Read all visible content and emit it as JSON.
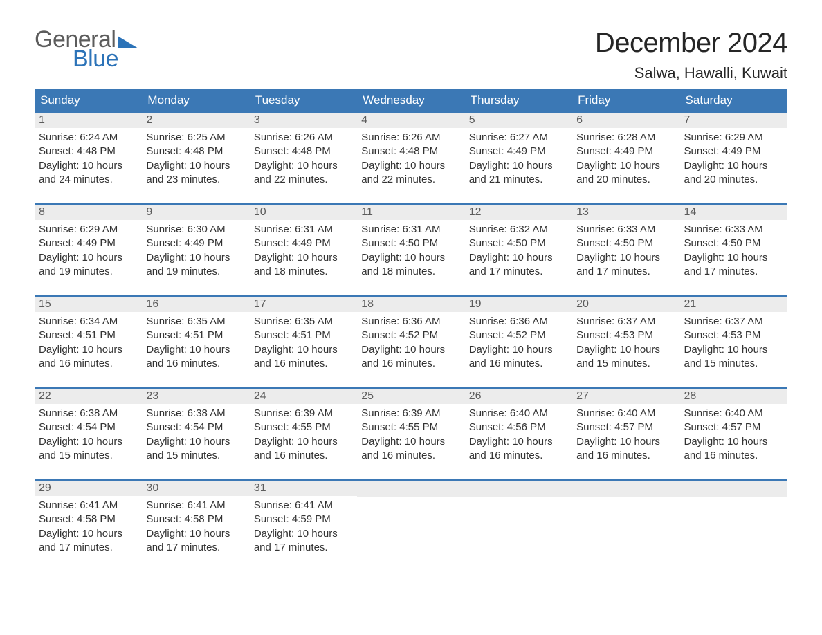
{
  "logo": {
    "word1": "General",
    "word2": "Blue"
  },
  "header": {
    "title": "December 2024",
    "location": "Salwa, Hawalli, Kuwait"
  },
  "style": {
    "header_bg": "#3b78b5",
    "header_fg": "#ffffff",
    "daynum_bg": "#ececec",
    "daynum_fg": "#5c5c5c",
    "row_border": "#3b78b5",
    "page_bg": "#ffffff",
    "text_color": "#333333",
    "logo_general_color": "#5c5c5c",
    "logo_blue_color": "#2c73b8",
    "title_color": "#262626",
    "title_fontsize": 40,
    "location_fontsize": 22,
    "dow_fontsize": 17,
    "body_fontsize": 15
  },
  "daysOfWeek": [
    "Sunday",
    "Monday",
    "Tuesday",
    "Wednesday",
    "Thursday",
    "Friday",
    "Saturday"
  ],
  "weeks": [
    [
      {
        "n": "1",
        "l1": "Sunrise: 6:24 AM",
        "l2": "Sunset: 4:48 PM",
        "l3": "Daylight: 10 hours",
        "l4": "and 24 minutes."
      },
      {
        "n": "2",
        "l1": "Sunrise: 6:25 AM",
        "l2": "Sunset: 4:48 PM",
        "l3": "Daylight: 10 hours",
        "l4": "and 23 minutes."
      },
      {
        "n": "3",
        "l1": "Sunrise: 6:26 AM",
        "l2": "Sunset: 4:48 PM",
        "l3": "Daylight: 10 hours",
        "l4": "and 22 minutes."
      },
      {
        "n": "4",
        "l1": "Sunrise: 6:26 AM",
        "l2": "Sunset: 4:48 PM",
        "l3": "Daylight: 10 hours",
        "l4": "and 22 minutes."
      },
      {
        "n": "5",
        "l1": "Sunrise: 6:27 AM",
        "l2": "Sunset: 4:49 PM",
        "l3": "Daylight: 10 hours",
        "l4": "and 21 minutes."
      },
      {
        "n": "6",
        "l1": "Sunrise: 6:28 AM",
        "l2": "Sunset: 4:49 PM",
        "l3": "Daylight: 10 hours",
        "l4": "and 20 minutes."
      },
      {
        "n": "7",
        "l1": "Sunrise: 6:29 AM",
        "l2": "Sunset: 4:49 PM",
        "l3": "Daylight: 10 hours",
        "l4": "and 20 minutes."
      }
    ],
    [
      {
        "n": "8",
        "l1": "Sunrise: 6:29 AM",
        "l2": "Sunset: 4:49 PM",
        "l3": "Daylight: 10 hours",
        "l4": "and 19 minutes."
      },
      {
        "n": "9",
        "l1": "Sunrise: 6:30 AM",
        "l2": "Sunset: 4:49 PM",
        "l3": "Daylight: 10 hours",
        "l4": "and 19 minutes."
      },
      {
        "n": "10",
        "l1": "Sunrise: 6:31 AM",
        "l2": "Sunset: 4:49 PM",
        "l3": "Daylight: 10 hours",
        "l4": "and 18 minutes."
      },
      {
        "n": "11",
        "l1": "Sunrise: 6:31 AM",
        "l2": "Sunset: 4:50 PM",
        "l3": "Daylight: 10 hours",
        "l4": "and 18 minutes."
      },
      {
        "n": "12",
        "l1": "Sunrise: 6:32 AM",
        "l2": "Sunset: 4:50 PM",
        "l3": "Daylight: 10 hours",
        "l4": "and 17 minutes."
      },
      {
        "n": "13",
        "l1": "Sunrise: 6:33 AM",
        "l2": "Sunset: 4:50 PM",
        "l3": "Daylight: 10 hours",
        "l4": "and 17 minutes."
      },
      {
        "n": "14",
        "l1": "Sunrise: 6:33 AM",
        "l2": "Sunset: 4:50 PM",
        "l3": "Daylight: 10 hours",
        "l4": "and 17 minutes."
      }
    ],
    [
      {
        "n": "15",
        "l1": "Sunrise: 6:34 AM",
        "l2": "Sunset: 4:51 PM",
        "l3": "Daylight: 10 hours",
        "l4": "and 16 minutes."
      },
      {
        "n": "16",
        "l1": "Sunrise: 6:35 AM",
        "l2": "Sunset: 4:51 PM",
        "l3": "Daylight: 10 hours",
        "l4": "and 16 minutes."
      },
      {
        "n": "17",
        "l1": "Sunrise: 6:35 AM",
        "l2": "Sunset: 4:51 PM",
        "l3": "Daylight: 10 hours",
        "l4": "and 16 minutes."
      },
      {
        "n": "18",
        "l1": "Sunrise: 6:36 AM",
        "l2": "Sunset: 4:52 PM",
        "l3": "Daylight: 10 hours",
        "l4": "and 16 minutes."
      },
      {
        "n": "19",
        "l1": "Sunrise: 6:36 AM",
        "l2": "Sunset: 4:52 PM",
        "l3": "Daylight: 10 hours",
        "l4": "and 16 minutes."
      },
      {
        "n": "20",
        "l1": "Sunrise: 6:37 AM",
        "l2": "Sunset: 4:53 PM",
        "l3": "Daylight: 10 hours",
        "l4": "and 15 minutes."
      },
      {
        "n": "21",
        "l1": "Sunrise: 6:37 AM",
        "l2": "Sunset: 4:53 PM",
        "l3": "Daylight: 10 hours",
        "l4": "and 15 minutes."
      }
    ],
    [
      {
        "n": "22",
        "l1": "Sunrise: 6:38 AM",
        "l2": "Sunset: 4:54 PM",
        "l3": "Daylight: 10 hours",
        "l4": "and 15 minutes."
      },
      {
        "n": "23",
        "l1": "Sunrise: 6:38 AM",
        "l2": "Sunset: 4:54 PM",
        "l3": "Daylight: 10 hours",
        "l4": "and 15 minutes."
      },
      {
        "n": "24",
        "l1": "Sunrise: 6:39 AM",
        "l2": "Sunset: 4:55 PM",
        "l3": "Daylight: 10 hours",
        "l4": "and 16 minutes."
      },
      {
        "n": "25",
        "l1": "Sunrise: 6:39 AM",
        "l2": "Sunset: 4:55 PM",
        "l3": "Daylight: 10 hours",
        "l4": "and 16 minutes."
      },
      {
        "n": "26",
        "l1": "Sunrise: 6:40 AM",
        "l2": "Sunset: 4:56 PM",
        "l3": "Daylight: 10 hours",
        "l4": "and 16 minutes."
      },
      {
        "n": "27",
        "l1": "Sunrise: 6:40 AM",
        "l2": "Sunset: 4:57 PM",
        "l3": "Daylight: 10 hours",
        "l4": "and 16 minutes."
      },
      {
        "n": "28",
        "l1": "Sunrise: 6:40 AM",
        "l2": "Sunset: 4:57 PM",
        "l3": "Daylight: 10 hours",
        "l4": "and 16 minutes."
      }
    ],
    [
      {
        "n": "29",
        "l1": "Sunrise: 6:41 AM",
        "l2": "Sunset: 4:58 PM",
        "l3": "Daylight: 10 hours",
        "l4": "and 17 minutes."
      },
      {
        "n": "30",
        "l1": "Sunrise: 6:41 AM",
        "l2": "Sunset: 4:58 PM",
        "l3": "Daylight: 10 hours",
        "l4": "and 17 minutes."
      },
      {
        "n": "31",
        "l1": "Sunrise: 6:41 AM",
        "l2": "Sunset: 4:59 PM",
        "l3": "Daylight: 10 hours",
        "l4": "and 17 minutes."
      },
      {
        "empty": true
      },
      {
        "empty": true
      },
      {
        "empty": true
      },
      {
        "empty": true
      }
    ]
  ]
}
